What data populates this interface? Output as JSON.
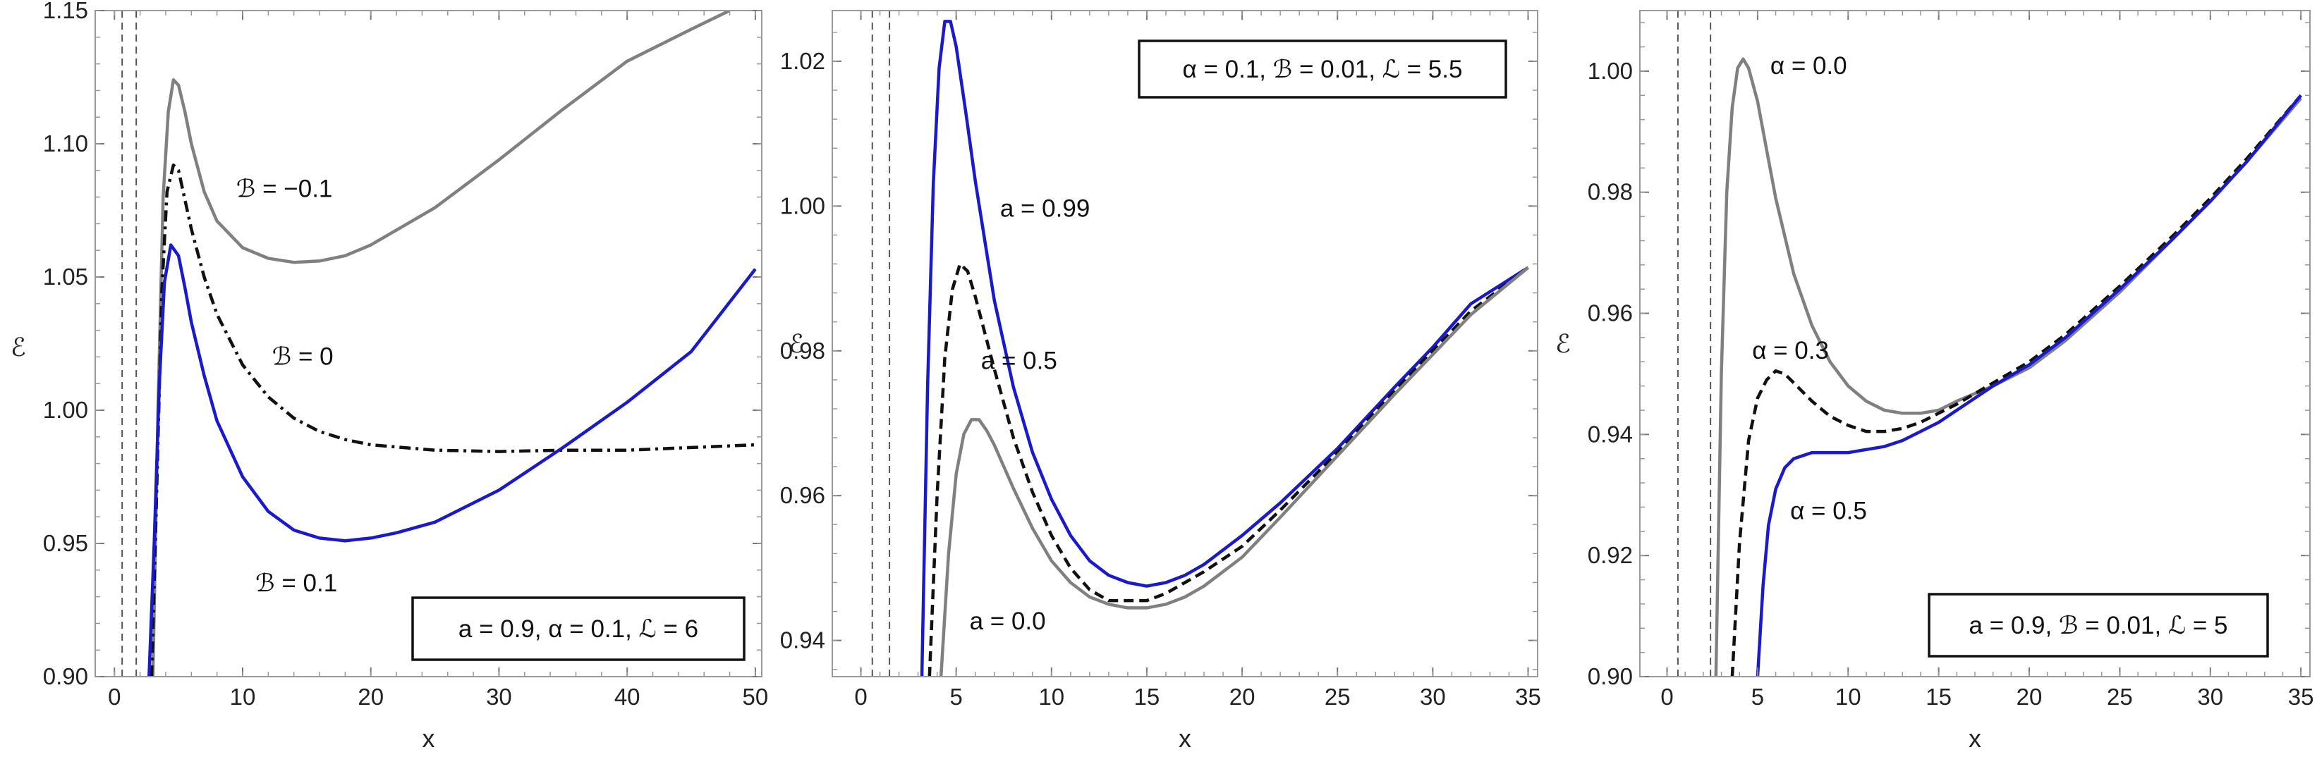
{
  "chart_data": [
    {
      "type": "line",
      "title": "",
      "xlabel": "x",
      "ylabel": "ℰ",
      "xlim": [
        -1.5,
        50.5
      ],
      "ylim": [
        0.9,
        1.15
      ],
      "xticks": [
        0,
        10,
        20,
        30,
        40,
        50
      ],
      "xtick_labels": [
        "0",
        "10",
        "20",
        "30",
        "40",
        "50"
      ],
      "yticks": [
        0.9,
        0.95,
        1.0,
        1.05,
        1.1,
        1.15
      ],
      "ytick_labels": [
        "0.90",
        "0.95",
        "1.00",
        "1.05",
        "1.10",
        "1.15"
      ],
      "vlines": [
        0.6,
        1.7
      ],
      "grid": false,
      "parameters_box": {
        "text": "a = 0.9, α = 0.1, ℒ = 6",
        "position": "bottom-right"
      },
      "series": [
        {
          "name": "ℬ = −0.1",
          "color": "#808080",
          "style": "solid",
          "x": [
            3.0,
            3.4,
            3.8,
            4.2,
            4.6,
            5.0,
            5.5,
            6,
            7,
            8,
            10,
            12,
            14,
            16,
            18,
            20,
            25,
            30,
            35,
            40,
            45,
            48
          ],
          "y": [
            0.9,
            1.0,
            1.08,
            1.112,
            1.124,
            1.122,
            1.112,
            1.1,
            1.082,
            1.071,
            1.061,
            1.057,
            1.0555,
            1.056,
            1.058,
            1.062,
            1.076,
            1.094,
            1.113,
            1.131,
            1.143,
            1.15
          ]
        },
        {
          "name": "ℬ = 0",
          "color": "#111111",
          "style": "dashdot",
          "x": [
            2.9,
            3.3,
            3.7,
            4.1,
            4.6,
            5.0,
            5.5,
            6,
            7,
            8,
            10,
            12,
            14,
            16,
            18,
            20,
            25,
            30,
            35,
            40,
            45,
            50
          ],
          "y": [
            0.9,
            0.97,
            1.045,
            1.082,
            1.092,
            1.09,
            1.079,
            1.068,
            1.05,
            1.036,
            1.017,
            1.005,
            0.997,
            0.992,
            0.989,
            0.987,
            0.985,
            0.9845,
            0.985,
            0.985,
            0.986,
            0.987
          ]
        },
        {
          "name": "ℬ = 0.1",
          "color": "#1a1acc",
          "style": "solid",
          "x": [
            2.7,
            3.1,
            3.5,
            3.9,
            4.4,
            5.0,
            5.5,
            6,
            7,
            8,
            10,
            12,
            14,
            16,
            18,
            20,
            22,
            25,
            30,
            35,
            40,
            45,
            50
          ],
          "y": [
            0.9,
            0.95,
            1.01,
            1.048,
            1.062,
            1.058,
            1.046,
            1.033,
            1.013,
            0.996,
            0.975,
            0.962,
            0.955,
            0.952,
            0.951,
            0.952,
            0.954,
            0.958,
            0.97,
            0.986,
            1.003,
            1.022,
            1.053
          ]
        }
      ],
      "annotations": [
        {
          "text": "ℬ = −0.1",
          "x": 9.5,
          "y": 1.08
        },
        {
          "text": "ℬ = 0",
          "x": 12.3,
          "y": 1.017
        },
        {
          "text": "ℬ = 0.1",
          "x": 11.0,
          "y": 0.932
        }
      ]
    },
    {
      "type": "line",
      "title": "",
      "xlabel": "x",
      "ylabel": "ℰ",
      "xlim": [
        -1.5,
        35.5
      ],
      "ylim": [
        0.935,
        1.027
      ],
      "xticks": [
        0,
        5,
        10,
        15,
        20,
        25,
        30,
        35
      ],
      "xtick_labels": [
        "0",
        "5",
        "10",
        "15",
        "20",
        "25",
        "30",
        "35"
      ],
      "yticks": [
        0.94,
        0.96,
        0.98,
        1.0,
        1.02
      ],
      "ytick_labels": [
        "0.94",
        "0.96",
        "0.98",
        "1.00",
        "1.02"
      ],
      "vlines": [
        0.6,
        1.5
      ],
      "grid": false,
      "parameters_box": {
        "text": "α = 0.1, ℬ = 0.01, ℒ = 5.5",
        "position": "top-right"
      },
      "series": [
        {
          "name": "a = 0.99",
          "color": "#1a1acc",
          "style": "solid",
          "x": [
            3.2,
            3.5,
            3.8,
            4.1,
            4.4,
            4.7,
            5.0,
            5.5,
            6,
            7,
            8,
            9,
            10,
            11,
            12,
            13,
            14,
            15,
            16,
            17,
            18,
            20,
            22,
            25,
            28,
            30,
            32,
            35
          ],
          "y": [
            0.935,
            0.975,
            1.003,
            1.019,
            1.0255,
            1.0255,
            1.022,
            1.013,
            1.0035,
            0.987,
            0.975,
            0.966,
            0.9595,
            0.9545,
            0.951,
            0.949,
            0.948,
            0.9475,
            0.948,
            0.949,
            0.9505,
            0.9545,
            0.959,
            0.9665,
            0.975,
            0.9805,
            0.9865,
            0.9915
          ]
        },
        {
          "name": "a = 0.5",
          "color": "#111111",
          "style": "dashed",
          "x": [
            3.6,
            4.0,
            4.4,
            4.8,
            5.2,
            5.6,
            6.0,
            6.5,
            7,
            8,
            9,
            10,
            11,
            12,
            13,
            14,
            15,
            16,
            17,
            18,
            20,
            22,
            25,
            28,
            30,
            32,
            35
          ],
          "y": [
            0.935,
            0.96,
            0.979,
            0.9885,
            0.992,
            0.991,
            0.9875,
            0.9825,
            0.9775,
            0.968,
            0.9605,
            0.9545,
            0.95,
            0.947,
            0.9455,
            0.9455,
            0.9455,
            0.9465,
            0.948,
            0.9495,
            0.953,
            0.958,
            0.966,
            0.9745,
            0.98,
            0.9855,
            0.9915
          ]
        },
        {
          "name": "a = 0.0",
          "color": "#808080",
          "style": "solid",
          "x": [
            4.2,
            4.6,
            5.0,
            5.4,
            5.8,
            6.2,
            6.6,
            7,
            8,
            9,
            10,
            11,
            12,
            13,
            14,
            15,
            16,
            17,
            18,
            20,
            22,
            25,
            28,
            30,
            32,
            35
          ],
          "y": [
            0.935,
            0.952,
            0.963,
            0.9685,
            0.9705,
            0.9705,
            0.969,
            0.967,
            0.961,
            0.9555,
            0.951,
            0.948,
            0.946,
            0.945,
            0.9445,
            0.9445,
            0.945,
            0.946,
            0.9475,
            0.9515,
            0.957,
            0.9655,
            0.974,
            0.9795,
            0.985,
            0.9915
          ]
        }
      ],
      "annotations": [
        {
          "text": "a = 0.99",
          "x": 7.3,
          "y": 0.9985
        },
        {
          "text": "a = 0.5",
          "x": 6.3,
          "y": 0.9775
        },
        {
          "text": "a = 0.0",
          "x": 5.7,
          "y": 0.9415
        }
      ]
    },
    {
      "type": "line",
      "title": "",
      "xlabel": "x",
      "ylabel": "ℰ",
      "xlim": [
        -1.5,
        35.5
      ],
      "ylim": [
        0.9,
        1.01
      ],
      "xticks": [
        0,
        5,
        10,
        15,
        20,
        25,
        30,
        35
      ],
      "xtick_labels": [
        "0",
        "5",
        "10",
        "15",
        "20",
        "25",
        "30",
        "35"
      ],
      "yticks": [
        0.9,
        0.92,
        0.94,
        0.96,
        0.98,
        1.0
      ],
      "ytick_labels": [
        "0.90",
        "0.92",
        "0.94",
        "0.96",
        "0.98",
        "1.00"
      ],
      "vlines": [
        0.6,
        2.4
      ],
      "grid": false,
      "parameters_box": {
        "text": "a = 0.9, ℬ = 0.01, ℒ = 5",
        "position": "bottom-right"
      },
      "series": [
        {
          "name": "α = 0.0",
          "color": "#808080",
          "style": "solid",
          "x": [
            2.7,
            3.0,
            3.3,
            3.6,
            3.9,
            4.2,
            4.5,
            5.0,
            5.5,
            6,
            7,
            8,
            9,
            10,
            11,
            12,
            13,
            14,
            15,
            16,
            18,
            20,
            22,
            25,
            28,
            30,
            32,
            35
          ],
          "y": [
            0.9,
            0.95,
            0.98,
            0.994,
            1.0005,
            1.002,
            1.0005,
            0.995,
            0.987,
            0.979,
            0.9665,
            0.958,
            0.952,
            0.948,
            0.9455,
            0.944,
            0.9435,
            0.9435,
            0.944,
            0.9455,
            0.948,
            0.951,
            0.9555,
            0.9635,
            0.9725,
            0.9785,
            0.985,
            0.9955
          ]
        },
        {
          "name": "α = 0.3",
          "color": "#111111",
          "style": "dashed",
          "x": [
            3.6,
            4.0,
            4.5,
            5.0,
            5.5,
            6.0,
            6.5,
            7,
            8,
            9,
            10,
            11,
            12,
            13,
            14,
            15,
            16,
            18,
            20,
            22,
            25,
            28,
            30,
            32,
            35
          ],
          "y": [
            0.9,
            0.922,
            0.939,
            0.946,
            0.949,
            0.9505,
            0.95,
            0.9485,
            0.9455,
            0.943,
            0.9415,
            0.9405,
            0.9405,
            0.941,
            0.942,
            0.9435,
            0.945,
            0.9485,
            0.952,
            0.9565,
            0.9645,
            0.973,
            0.979,
            0.9855,
            0.996
          ]
        },
        {
          "name": "α = 0.5",
          "color": "#1a1acc",
          "style": "solid",
          "x": [
            5.0,
            5.3,
            5.6,
            6.0,
            6.5,
            7,
            8,
            9,
            10,
            11,
            12,
            13,
            14,
            15,
            16,
            18,
            20,
            22,
            25,
            28,
            30,
            32,
            35
          ],
          "y": [
            0.9,
            0.915,
            0.925,
            0.931,
            0.9345,
            0.936,
            0.937,
            0.937,
            0.937,
            0.9375,
            0.938,
            0.939,
            0.9405,
            0.942,
            0.944,
            0.948,
            0.9515,
            0.956,
            0.964,
            0.9725,
            0.9785,
            0.985,
            0.996
          ]
        }
      ],
      "annotations": [
        {
          "text": "α = 0.0",
          "x": 5.7,
          "y": 0.9995
        },
        {
          "text": "α = 0.3",
          "x": 4.7,
          "y": 0.9525
        },
        {
          "text": "α = 0.5",
          "x": 6.8,
          "y": 0.926
        }
      ]
    }
  ]
}
